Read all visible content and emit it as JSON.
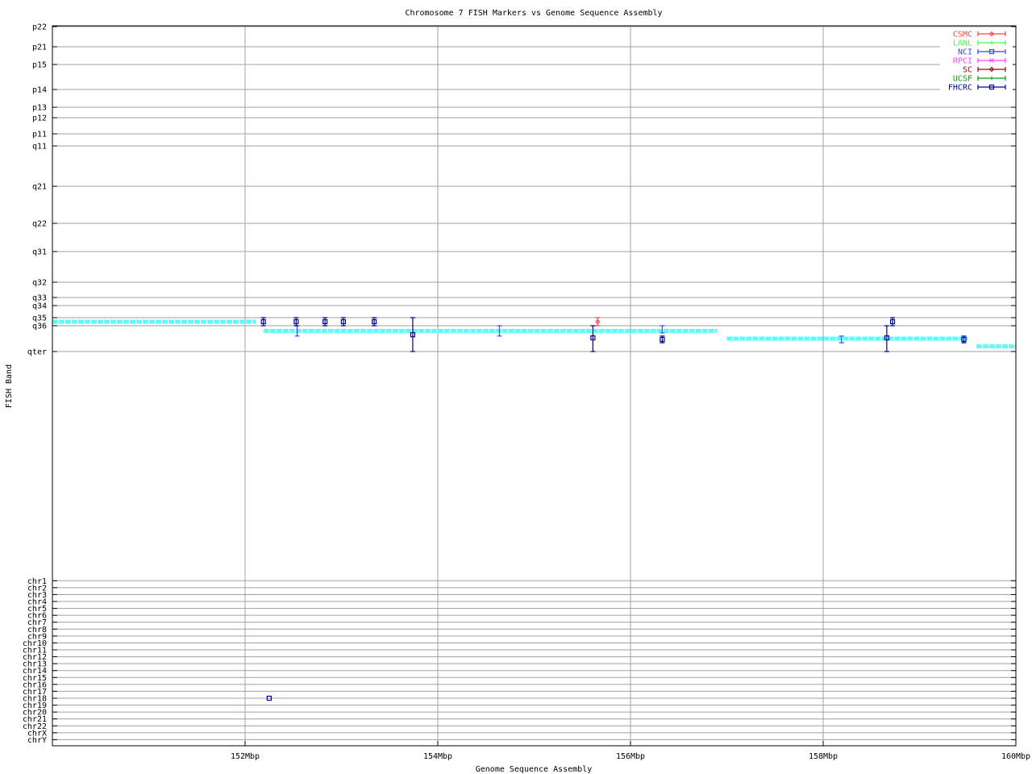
{
  "chart_data": {
    "type": "scatter",
    "title": "Chromosome 7 FISH Markers vs Genome Sequence Assembly",
    "xlabel": "Genome Sequence Assembly",
    "ylabel": "FISH Band",
    "xlim": [
      150,
      160
    ],
    "x_ticks": [
      {
        "value": 152,
        "label": "152Mbp"
      },
      {
        "value": 154,
        "label": "154Mbp"
      },
      {
        "value": 156,
        "label": "156Mbp"
      },
      {
        "value": 158,
        "label": "158Mbp"
      },
      {
        "value": 160,
        "label": "160Mbp"
      }
    ],
    "y_band_ticks": [
      "p22",
      "p21",
      "p15",
      "p14",
      "p13",
      "p12",
      "p11",
      "q11",
      "q21",
      "q22",
      "q31",
      "q32",
      "q33",
      "q34",
      "q35",
      "q36",
      "qter"
    ],
    "y_chrom_ticks": [
      "chr1",
      "chr2",
      "chr3",
      "chr4",
      "chr5",
      "chr6",
      "chr7",
      "chr8",
      "chr9",
      "chr10",
      "chr11",
      "chr12",
      "chr13",
      "chr14",
      "chr15",
      "chr16",
      "chr17",
      "chr18",
      "chr19",
      "chr20",
      "chr21",
      "chr22",
      "chrX",
      "chrY"
    ],
    "y_units": "band tick index (fractional = between bands)",
    "grid": true,
    "legend_placement": "top-right",
    "legend": [
      {
        "name": "CSMC",
        "color": "#ff4040",
        "marker": "diamond"
      },
      {
        "name": "LANL",
        "color": "#40ff40",
        "marker": "plus"
      },
      {
        "name": "NCI",
        "color": "#4040ff",
        "marker": "box"
      },
      {
        "name": "RPCI",
        "color": "#ff40ff",
        "marker": "cross"
      },
      {
        "name": "SC",
        "color": "#a00000",
        "marker": "diamond"
      },
      {
        "name": "UCSF",
        "color": "#00a000",
        "marker": "plus"
      },
      {
        "name": "FHCRC",
        "color": "#0000a0",
        "marker": "box"
      }
    ],
    "assembly_color": "#55ffff",
    "assembly_segments": [
      {
        "x1": 150.0,
        "x2": 152.11,
        "y": 14.5
      },
      {
        "x1": 152.19,
        "x2": 156.9,
        "y": 15.2
      },
      {
        "x1": 157.0,
        "x2": 159.5,
        "y": 15.5
      },
      {
        "x1": 159.59,
        "x2": 160.0,
        "y": 15.8
      }
    ],
    "series": [
      {
        "name": "CSMC",
        "points": [
          {
            "x": 155.66,
            "y": 14.5,
            "ylow": 14.0,
            "yhigh": 15.0
          }
        ]
      },
      {
        "name": "NCI",
        "points": [
          {
            "x": 152.54,
            "y": 15.2,
            "ylow": 15.0,
            "yhigh": 15.4
          },
          {
            "x": 154.64,
            "y": 15.2,
            "ylow": 15.0,
            "yhigh": 15.4
          },
          {
            "x": 156.33,
            "y": 15.15,
            "ylow": 15.0,
            "yhigh": 15.28
          },
          {
            "x": 158.19,
            "y": 15.53,
            "ylow": 15.4,
            "yhigh": 15.66
          }
        ]
      },
      {
        "name": "FHCRC",
        "points": [
          {
            "x": 152.19,
            "y": 14.5,
            "ylow": 14.0,
            "yhigh": 15.0
          },
          {
            "x": 152.53,
            "y": 14.5,
            "ylow": 14.0,
            "yhigh": 15.0
          },
          {
            "x": 152.83,
            "y": 14.5,
            "ylow": 14.0,
            "yhigh": 15.0
          },
          {
            "x": 153.02,
            "y": 14.5,
            "ylow": 14.0,
            "yhigh": 15.0
          },
          {
            "x": 153.34,
            "y": 14.5,
            "ylow": 14.0,
            "yhigh": 15.0
          },
          {
            "x": 153.74,
            "y": 15.35,
            "ylow": 14.0,
            "yhigh": 16.0
          },
          {
            "x": 155.61,
            "y": 15.47,
            "ylow": 15.0,
            "yhigh": 16.0
          },
          {
            "x": 156.33,
            "y": 15.53,
            "ylow": 15.4,
            "yhigh": 15.66
          },
          {
            "x": 158.66,
            "y": 15.47,
            "ylow": 15.0,
            "yhigh": 16.0
          },
          {
            "x": 158.72,
            "y": 14.5,
            "ylow": 14.0,
            "yhigh": 15.0
          },
          {
            "x": 159.46,
            "y": 15.53,
            "ylow": 15.4,
            "yhigh": 15.66
          },
          {
            "x": 152.25,
            "chrom": "chr18"
          }
        ]
      }
    ]
  }
}
